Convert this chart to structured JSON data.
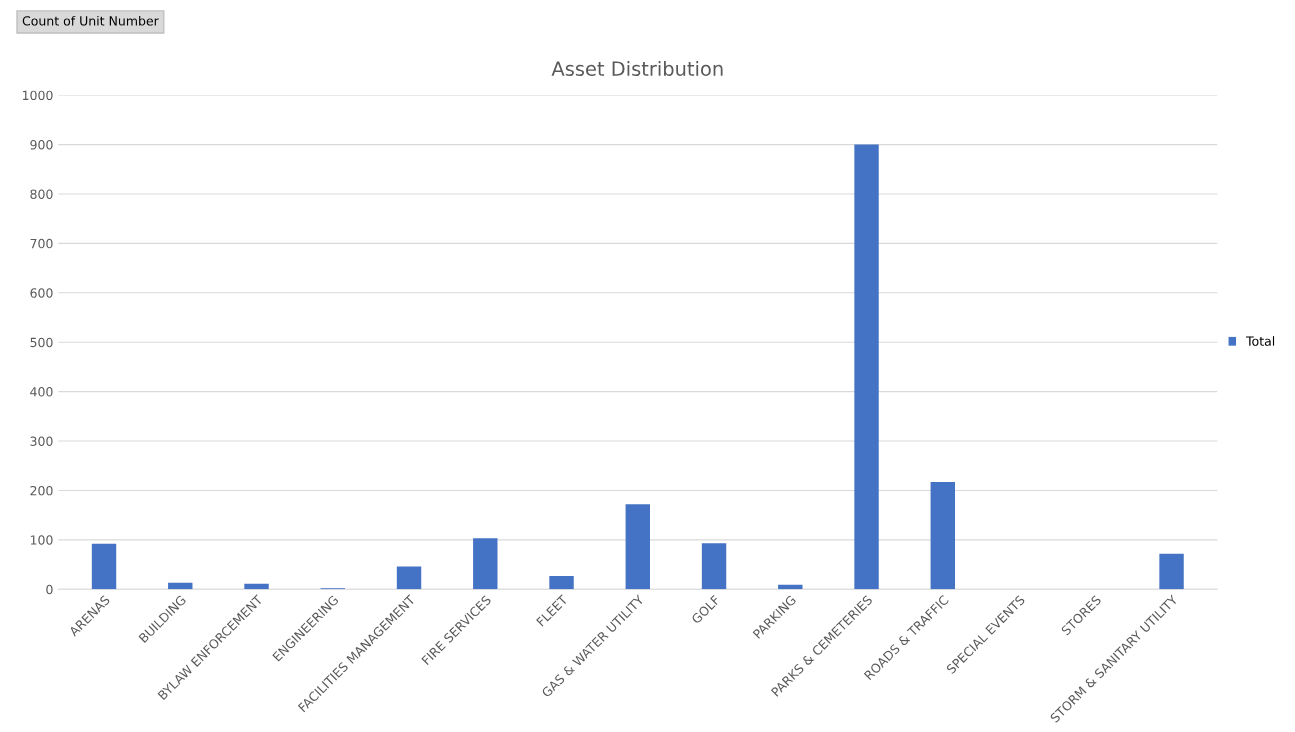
{
  "chart_data": {
    "type": "bar",
    "title": "Asset Distribution",
    "annotations": [
      "Count of Unit Number"
    ],
    "categories": [
      "ARENAS",
      "BUILDING",
      "BYLAW ENFORCEMENT",
      "ENGINEERING",
      "FACILITIES MANAGEMENT",
      "FIRE SERVICES",
      "FLEET",
      "GAS & WATER UTILITY",
      "GOLF",
      "PARKING",
      "PARKS & CEMETERIES",
      "ROADS & TRAFFIC",
      "SPECIAL EVENTS",
      "STORES",
      "STORM & SANITARY UTILITY"
    ],
    "series": [
      {
        "name": "Total",
        "color": "#4472c4",
        "values": [
          92,
          13,
          11,
          2,
          46,
          103,
          27,
          172,
          93,
          9,
          900,
          217,
          0,
          0,
          72
        ]
      }
    ],
    "ylim": [
      0,
      1000
    ],
    "yticks": [
      0,
      100,
      200,
      300,
      400,
      500,
      600,
      700,
      800,
      900,
      1000
    ],
    "grid": "y",
    "legend": "right"
  }
}
